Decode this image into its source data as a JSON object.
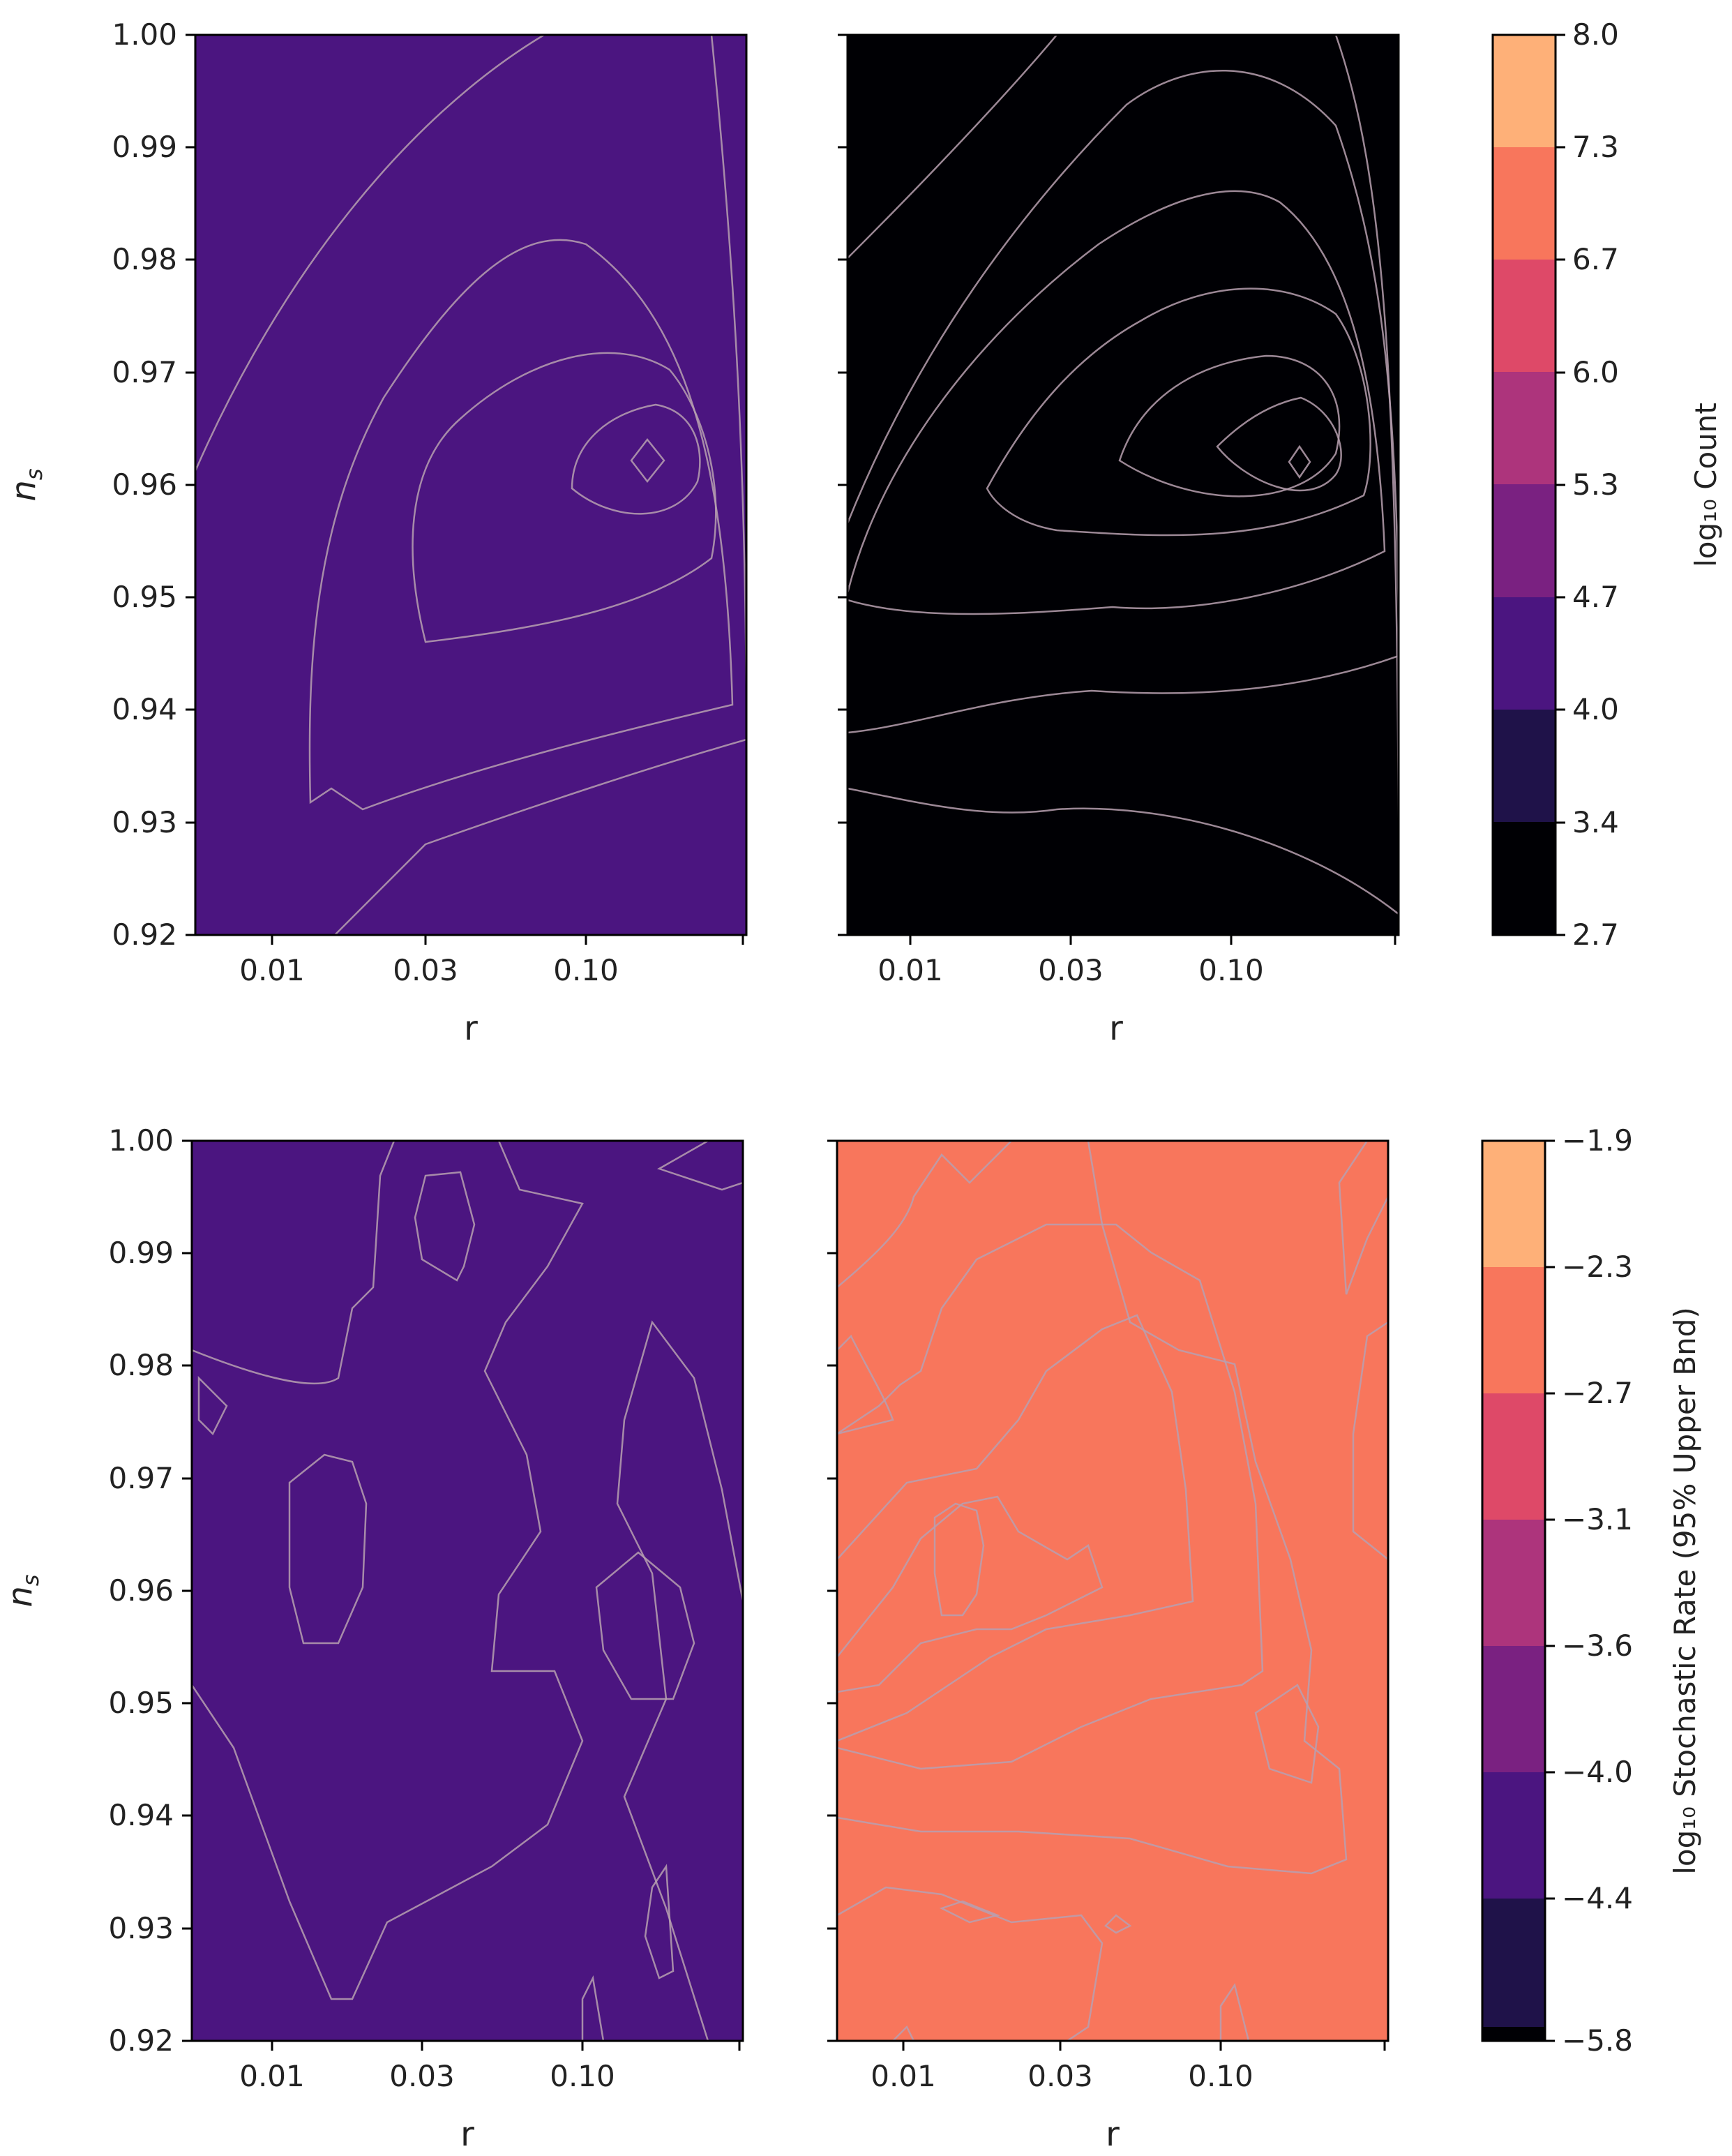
{
  "chart_data": {
    "type": "contour",
    "y_ticks": [
      "1.00",
      "0.99",
      "0.98",
      "0.97",
      "0.96",
      "0.95",
      "0.94",
      "0.93",
      "0.92"
    ],
    "x_ticks": [
      "0.01",
      "0.03",
      "0.10"
    ],
    "ylim": [
      0.92,
      1.0
    ],
    "xscale": "log",
    "colormap": "magma",
    "levels_colors": [
      "#000004",
      "#1f1249",
      "#4b1580",
      "#7a2181",
      "#ad347c",
      "#de4968",
      "#f8765c",
      "#feb078"
    ],
    "rows": [
      {
        "colorbar": {
          "label": "log₁₀ Count",
          "ticks": [
            "8.0",
            "7.3",
            "6.7",
            "6.0",
            "5.3",
            "4.7",
            "4.0",
            "3.4",
            "2.7"
          ]
        },
        "panels": [
          {
            "xlabel": "r",
            "ylabel": "n_s",
            "peak": {
              "r": 0.13,
              "n_s": 0.962
            }
          },
          {
            "xlabel": "r",
            "ylabel": "",
            "peak": {
              "r": 0.13,
              "n_s": 0.962
            }
          }
        ]
      },
      {
        "colorbar": {
          "label": "log₁₀ Stochastic Rate (95% Upper Bnd)",
          "ticks": [
            "−1.9",
            "−2.3",
            "−2.7",
            "−3.1",
            "−3.6",
            "−4.0",
            "−4.4",
            "−5.8"
          ]
        },
        "panels": [
          {
            "xlabel": "r",
            "ylabel": "n_s"
          },
          {
            "xlabel": "r",
            "ylabel": ""
          }
        ]
      }
    ]
  }
}
